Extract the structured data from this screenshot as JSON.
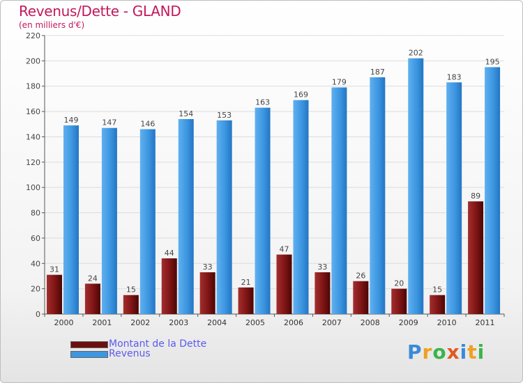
{
  "header": {
    "title": "Revenus/Dette - GLAND",
    "subtitle": "(en milliers d'€)"
  },
  "chart_data": {
    "type": "bar",
    "title": "Revenus/Dette - GLAND",
    "subtitle": "(en milliers d'€)",
    "xlabel": "",
    "ylabel": "",
    "categories": [
      "2000",
      "2001",
      "2002",
      "2003",
      "2004",
      "2005",
      "2006",
      "2007",
      "2008",
      "2009",
      "2010",
      "2011"
    ],
    "series": [
      {
        "name": "Montant de la Dette",
        "color": "#8b1a1a",
        "values": [
          31,
          24,
          15,
          44,
          33,
          21,
          47,
          33,
          26,
          20,
          15,
          89
        ]
      },
      {
        "name": "Revenus",
        "color": "#3d96e0",
        "values": [
          149,
          147,
          146,
          154,
          153,
          163,
          169,
          179,
          187,
          202,
          183,
          195
        ]
      }
    ],
    "ylim": [
      0,
      220
    ],
    "yticks": [
      0,
      20,
      40,
      60,
      80,
      100,
      120,
      140,
      160,
      180,
      200,
      220
    ],
    "grid": true,
    "legend_position": "bottom-left"
  },
  "legend": {
    "items": [
      {
        "label": "Montant de la Dette",
        "color": "#6b0f0f"
      },
      {
        "label": "Revenus",
        "color": "#3d96e0"
      }
    ]
  },
  "logo": {
    "letters": [
      {
        "char": "P",
        "color": "#3a8ad8"
      },
      {
        "char": "r",
        "color": "#f0a020"
      },
      {
        "char": "o",
        "color": "#3ab44a"
      },
      {
        "char": "x",
        "color": "#e05a20"
      },
      {
        "char": "i",
        "color": "#3a8ad8"
      },
      {
        "char": "t",
        "color": "#f0a020"
      },
      {
        "char": "i",
        "color": "#3ab44a"
      }
    ]
  }
}
